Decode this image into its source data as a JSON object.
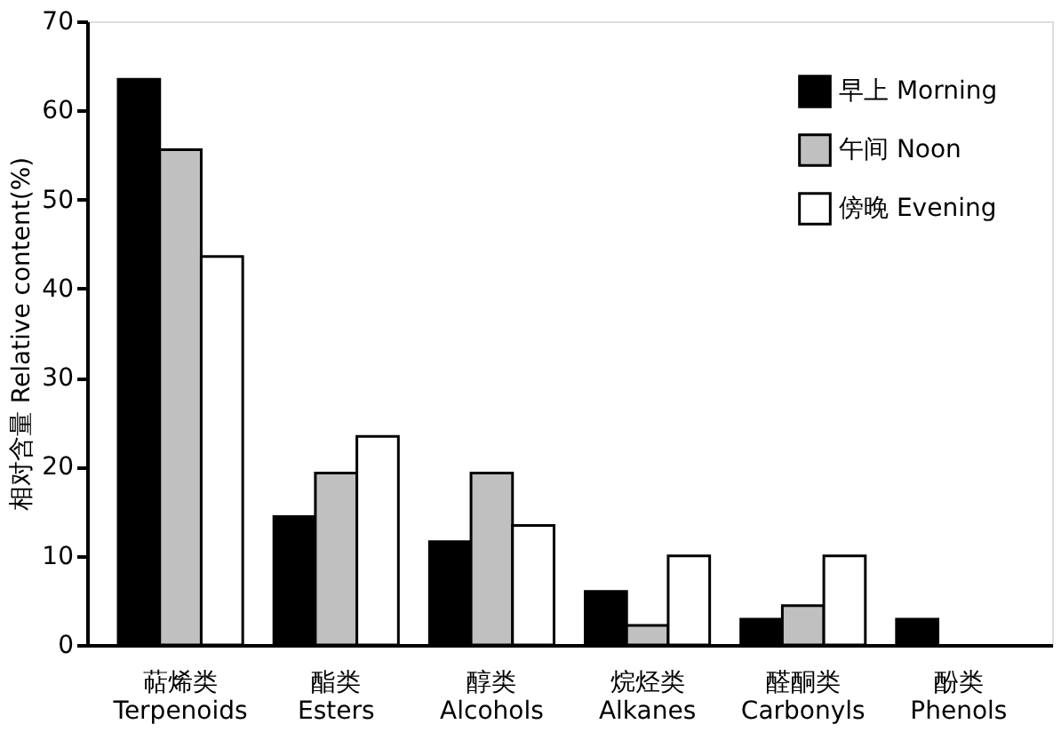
{
  "chart_data": {
    "type": "bar",
    "ylabel": "相对含量 Relative content(%)",
    "categories": [
      "萜烯类 Terpenoids",
      "酯类 Esters",
      "醇类 Alcohols",
      "烷烃类 Alkanes",
      "醛酮类 Carbonyls",
      "酚类 Phenols"
    ],
    "series": [
      {
        "name": "早上 Morning",
        "color": "#000000",
        "values": [
          63.5,
          14.4,
          11.6,
          6.0,
          2.9,
          2.9
        ]
      },
      {
        "name": "午间 Noon",
        "color": "#c0c0c0",
        "values": [
          55.6,
          19.3,
          19.3,
          2.2,
          4.4,
          null
        ]
      },
      {
        "name": "傍晚 Evening",
        "color": "#ffffff",
        "values": [
          43.6,
          23.4,
          13.4,
          10.0,
          10.0,
          null
        ]
      }
    ],
    "ylim": [
      0,
      70
    ],
    "yticks": [
      0,
      10,
      20,
      30,
      40,
      50,
      60,
      70
    ],
    "grid": false,
    "legend": "top right"
  }
}
